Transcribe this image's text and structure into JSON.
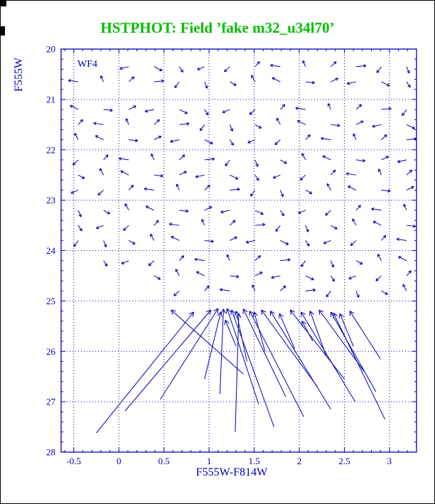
{
  "title": "HSTPHOT: Field ’fake m32_u34l70’",
  "field_label": "WF4",
  "colors": {
    "title_green": "#00bf00",
    "plot_blue": "#0000b0",
    "background": "#ffffff"
  },
  "chart_data": {
    "type": "scatter",
    "subtype": "vector_field",
    "title": "HSTPHOT: Field ’fake m32_u34l70’",
    "xlabel": "F555W-F814W",
    "ylabel": "F555W",
    "annotation": "WF4",
    "xlim": [
      -0.64,
      3.3
    ],
    "ylim": [
      28,
      20
    ],
    "grid": true,
    "grid_style": "dotted",
    "xticks": [
      -0.5,
      0,
      0.5,
      1,
      1.5,
      2,
      2.5,
      3
    ],
    "xtick_labels": [
      "-0.5",
      "0",
      "0.5",
      "1",
      "1.5",
      "2",
      "2.5",
      "3"
    ],
    "yticks": [
      20,
      21,
      22,
      23,
      24,
      25,
      26,
      27,
      28
    ],
    "ytick_labels": [
      "20",
      "21",
      "22",
      "23",
      "24",
      "25",
      "26",
      "27",
      "28"
    ],
    "vector_field": {
      "description": "small photometric-error displacement arrows on a color-magnitude grid; position [color, mag], displacement [dcolor, dmag]",
      "cols": [
        -0.45,
        -0.17,
        0.11,
        0.39,
        0.67,
        0.95,
        1.23,
        1.51,
        1.79,
        2.07,
        2.35,
        2.63,
        2.91,
        3.19
      ],
      "rows": [
        20.35,
        20.65,
        21.2,
        21.5,
        21.8,
        22.2,
        22.5,
        22.8,
        23.2,
        23.5,
        23.8,
        24.2,
        24.5,
        24.8
      ],
      "dirs": [
        [
          0.1,
          0.02
        ],
        [
          -0.08,
          0.06
        ],
        [
          0.06,
          -0.1
        ],
        [
          -0.04,
          -0.13
        ],
        [
          0.09,
          0.08
        ],
        [
          -0.11,
          -0.03
        ],
        [
          0.03,
          0.13
        ],
        [
          0.08,
          -0.07
        ],
        [
          -0.06,
          0.1
        ],
        [
          0.11,
          -0.02
        ],
        [
          -0.09,
          -0.08
        ],
        [
          0.04,
          0.11
        ],
        [
          -0.03,
          -0.12
        ],
        [
          0.07,
          0.07
        ],
        [
          -0.1,
          0.04
        ],
        [
          0.05,
          -0.1
        ],
        [
          -0.05,
          0.12
        ]
      ],
      "index_grid": [
        [
          -1,
          -1,
          14,
          4,
          11,
          1,
          8,
          15,
          5,
          12,
          2,
          9,
          16,
          6
        ],
        [
          5,
          12,
          2,
          9,
          16,
          6,
          13,
          3,
          10,
          0,
          7,
          14,
          4,
          11
        ],
        [
          10,
          0,
          7,
          14,
          4,
          11,
          1,
          8,
          15,
          5,
          12,
          2,
          9,
          16
        ],
        [
          15,
          5,
          12,
          2,
          9,
          16,
          6,
          13,
          3,
          10,
          0,
          7,
          14,
          4
        ],
        [
          3,
          10,
          0,
          7,
          14,
          4,
          11,
          1,
          8,
          15,
          5,
          12,
          2,
          9
        ],
        [
          8,
          15,
          5,
          12,
          2,
          9,
          16,
          6,
          13,
          3,
          10,
          0,
          7,
          14
        ],
        [
          13,
          3,
          10,
          0,
          7,
          14,
          4,
          11,
          1,
          8,
          15,
          5,
          12,
          2
        ],
        [
          1,
          8,
          15,
          5,
          12,
          2,
          9,
          16,
          6,
          13,
          3,
          10,
          0,
          7
        ],
        [
          6,
          13,
          3,
          10,
          0,
          7,
          14,
          4,
          11,
          1,
          8,
          15,
          5,
          12
        ],
        [
          11,
          1,
          8,
          15,
          5,
          12,
          2,
          9,
          16,
          6,
          13,
          3,
          10,
          0
        ],
        [
          16,
          6,
          13,
          3,
          10,
          0,
          7,
          14,
          4,
          11,
          1,
          8,
          15,
          5
        ],
        [
          -1,
          11,
          1,
          8,
          15,
          5,
          12,
          2,
          9,
          16,
          6,
          13,
          3,
          10
        ],
        [
          -1,
          -1,
          -1,
          13,
          3,
          10,
          0,
          7,
          14,
          4,
          11,
          1,
          8,
          15
        ],
        [
          -1,
          -1,
          -1,
          -1,
          8,
          15,
          5,
          12,
          2,
          9,
          16,
          6,
          13,
          3
        ]
      ]
    },
    "long_arrows": [
      [
        -0.25,
        27.62,
        0.83,
        25.22
      ],
      [
        0.07,
        27.18,
        1.02,
        25.18
      ],
      [
        1.38,
        26.45,
        0.58,
        25.18
      ],
      [
        0.46,
        26.95,
        1.1,
        25.15
      ],
      [
        0.95,
        26.55,
        1.13,
        25.22
      ],
      [
        1.12,
        26.85,
        1.16,
        25.16
      ],
      [
        1.55,
        27.05,
        1.2,
        25.15
      ],
      [
        1.72,
        27.5,
        1.25,
        25.18
      ],
      [
        1.42,
        26.2,
        1.3,
        25.2
      ],
      [
        1.85,
        26.9,
        1.38,
        25.16
      ],
      [
        2.05,
        27.3,
        1.45,
        25.2
      ],
      [
        1.62,
        26.0,
        1.5,
        25.22
      ],
      [
        2.2,
        26.7,
        1.58,
        25.18
      ],
      [
        2.35,
        27.15,
        1.68,
        25.2
      ],
      [
        1.95,
        25.95,
        1.78,
        25.25
      ],
      [
        2.5,
        26.55,
        1.9,
        25.18
      ],
      [
        2.62,
        27.0,
        2.02,
        25.22
      ],
      [
        2.3,
        26.1,
        2.12,
        25.2
      ],
      [
        2.72,
        26.4,
        2.22,
        25.18
      ],
      [
        2.85,
        26.8,
        2.35,
        25.22
      ],
      [
        2.6,
        25.9,
        2.45,
        25.25
      ],
      [
        2.9,
        26.15,
        2.56,
        25.2
      ],
      [
        2.95,
        27.35,
        2.38,
        25.24
      ],
      [
        1.29,
        27.6,
        1.33,
        25.25
      ],
      [
        1.3,
        25.9,
        1.18,
        25.38
      ],
      [
        2.15,
        25.8,
        2.03,
        25.4
      ]
    ]
  }
}
